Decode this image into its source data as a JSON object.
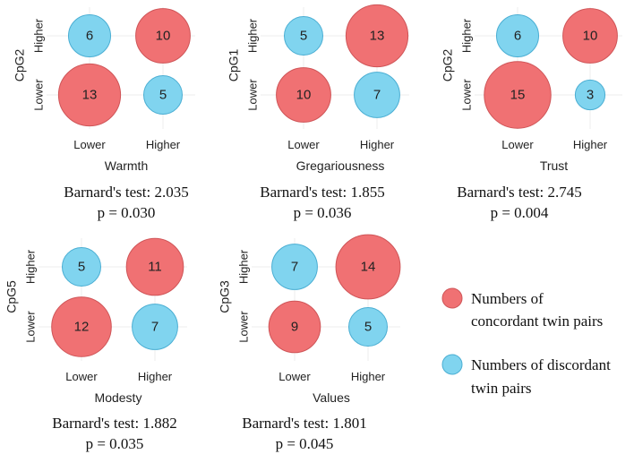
{
  "colors": {
    "concordant": "#f07173",
    "concordant_stroke": "#cf5558",
    "discordant": "#80d4ef",
    "discordant_stroke": "#4aaed3"
  },
  "legend": {
    "concordant_line1": "Numbers of",
    "concordant_line2": "concordant twin pairs",
    "discordant_line1": "Numbers of discordant",
    "discordant_line2": "twin pairs"
  },
  "chart_data": [
    {
      "type": "bubble",
      "xlabel": "Warmth",
      "ylabel": "CpG2",
      "x_ticks": [
        "Lower",
        "Higher"
      ],
      "y_ticks": [
        "Lower",
        "Higher"
      ],
      "cells": [
        {
          "x": "Lower",
          "y": "Higher",
          "value": 6,
          "kind": "discordant"
        },
        {
          "x": "Higher",
          "y": "Higher",
          "value": 10,
          "kind": "concordant"
        },
        {
          "x": "Lower",
          "y": "Lower",
          "value": 13,
          "kind": "concordant"
        },
        {
          "x": "Higher",
          "y": "Lower",
          "value": 5,
          "kind": "discordant"
        }
      ],
      "stat_line1": "Barnard's test: 2.035",
      "stat_line2": "p = 0.030"
    },
    {
      "type": "bubble",
      "xlabel": "Gregariousness",
      "ylabel": "CpG1",
      "x_ticks": [
        "Lower",
        "Higher"
      ],
      "y_ticks": [
        "Lower",
        "Higher"
      ],
      "cells": [
        {
          "x": "Lower",
          "y": "Higher",
          "value": 5,
          "kind": "discordant"
        },
        {
          "x": "Higher",
          "y": "Higher",
          "value": 13,
          "kind": "concordant"
        },
        {
          "x": "Lower",
          "y": "Lower",
          "value": 10,
          "kind": "concordant"
        },
        {
          "x": "Higher",
          "y": "Lower",
          "value": 7,
          "kind": "discordant"
        }
      ],
      "stat_line1": "Barnard's test: 1.855",
      "stat_line2": "p = 0.036"
    },
    {
      "type": "bubble",
      "xlabel": "Trust",
      "ylabel": "CpG2",
      "x_ticks": [
        "Lower",
        "Higher"
      ],
      "y_ticks": [
        "Lower",
        "Higher"
      ],
      "cells": [
        {
          "x": "Lower",
          "y": "Higher",
          "value": 6,
          "kind": "discordant"
        },
        {
          "x": "Higher",
          "y": "Higher",
          "value": 10,
          "kind": "concordant"
        },
        {
          "x": "Lower",
          "y": "Lower",
          "value": 15,
          "kind": "concordant"
        },
        {
          "x": "Higher",
          "y": "Lower",
          "value": 3,
          "kind": "discordant"
        }
      ],
      "stat_line1": "Barnard's test: 2.745",
      "stat_line2": "p = 0.004"
    },
    {
      "type": "bubble",
      "xlabel": "Modesty",
      "ylabel": "CpG5",
      "x_ticks": [
        "Lower",
        "Higher"
      ],
      "y_ticks": [
        "Lower",
        "Higher"
      ],
      "cells": [
        {
          "x": "Lower",
          "y": "Higher",
          "value": 5,
          "kind": "discordant"
        },
        {
          "x": "Higher",
          "y": "Higher",
          "value": 11,
          "kind": "concordant"
        },
        {
          "x": "Lower",
          "y": "Lower",
          "value": 12,
          "kind": "concordant"
        },
        {
          "x": "Higher",
          "y": "Lower",
          "value": 7,
          "kind": "discordant"
        }
      ],
      "stat_line1": "Barnard's test: 1.882",
      "stat_line2": "p = 0.035"
    },
    {
      "type": "bubble",
      "xlabel": "Values",
      "ylabel": "CpG3",
      "x_ticks": [
        "Lower",
        "Higher"
      ],
      "y_ticks": [
        "Lower",
        "Higher"
      ],
      "cells": [
        {
          "x": "Lower",
          "y": "Higher",
          "value": 7,
          "kind": "discordant"
        },
        {
          "x": "Higher",
          "y": "Higher",
          "value": 14,
          "kind": "concordant"
        },
        {
          "x": "Lower",
          "y": "Lower",
          "value": 9,
          "kind": "concordant"
        },
        {
          "x": "Higher",
          "y": "Lower",
          "value": 5,
          "kind": "discordant"
        }
      ],
      "stat_line1": "Barnard's test: 1.801",
      "stat_line2": "p = 0.045"
    }
  ]
}
